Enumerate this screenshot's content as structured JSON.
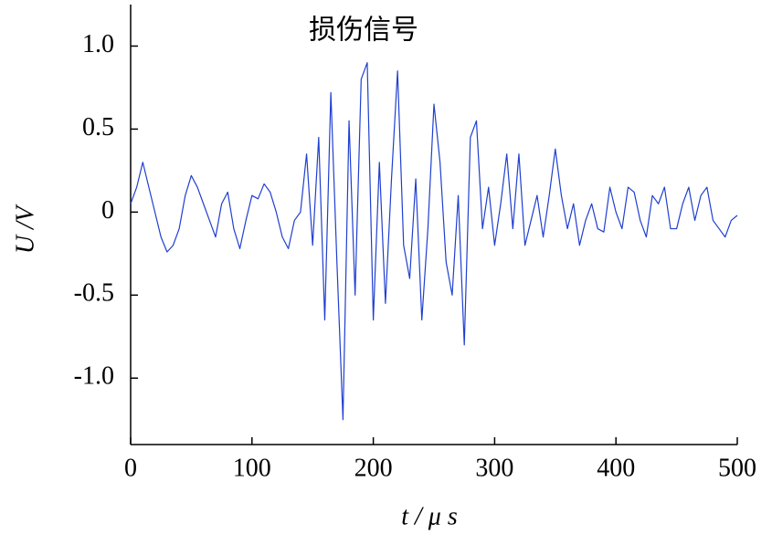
{
  "chart_data": {
    "type": "line",
    "title": "损伤信号",
    "x_label": "t / μ s",
    "y_label": "U /V",
    "xlim": [
      0,
      500
    ],
    "xticks": [
      0,
      100,
      200,
      300,
      400,
      500
    ],
    "ylim": [
      -1.4,
      1.25
    ],
    "yticks": [
      {
        "value": 1.0,
        "label": "1.0"
      },
      0.5,
      0,
      -0.5,
      {
        "value": -1.0,
        "label": "-1.0"
      }
    ],
    "grid": false,
    "x": [
      0,
      5,
      10,
      15,
      20,
      25,
      30,
      35,
      40,
      45,
      50,
      55,
      60,
      65,
      70,
      75,
      80,
      85,
      90,
      95,
      100,
      105,
      110,
      115,
      120,
      125,
      130,
      135,
      140,
      145,
      150,
      155,
      160,
      165,
      170,
      175,
      180,
      185,
      190,
      195,
      200,
      205,
      210,
      215,
      220,
      225,
      230,
      235,
      240,
      245,
      250,
      255,
      260,
      265,
      270,
      275,
      280,
      285,
      290,
      295,
      300,
      305,
      310,
      315,
      320,
      325,
      330,
      335,
      340,
      345,
      350,
      355,
      360,
      365,
      370,
      375,
      380,
      385,
      390,
      395,
      400,
      405,
      410,
      415,
      420,
      425,
      430,
      435,
      440,
      445,
      450,
      455,
      460,
      465,
      470,
      475,
      480,
      485,
      490,
      495,
      500
    ],
    "series": [
      {
        "name": "损伤信号",
        "color": "#1f3fcf",
        "values": [
          0.05,
          0.15,
          0.3,
          0.15,
          0.0,
          -0.15,
          -0.24,
          -0.2,
          -0.1,
          0.1,
          0.22,
          0.15,
          0.05,
          -0.05,
          -0.15,
          0.05,
          0.12,
          -0.1,
          -0.22,
          -0.05,
          0.1,
          0.08,
          0.17,
          0.12,
          0.0,
          -0.15,
          -0.22,
          -0.05,
          0.0,
          0.35,
          -0.2,
          0.45,
          -0.65,
          0.72,
          -0.3,
          -1.25,
          0.55,
          -0.5,
          0.8,
          0.9,
          -0.65,
          0.3,
          -0.55,
          0.2,
          0.85,
          -0.2,
          -0.4,
          0.2,
          -0.65,
          -0.1,
          0.65,
          0.3,
          -0.3,
          -0.5,
          0.1,
          -0.8,
          0.45,
          0.55,
          -0.1,
          0.15,
          -0.2,
          0.05,
          0.35,
          -0.1,
          0.35,
          -0.2,
          -0.05,
          0.1,
          -0.15,
          0.1,
          0.38,
          0.1,
          -0.1,
          0.05,
          -0.2,
          -0.05,
          0.05,
          -0.1,
          -0.12,
          0.15,
          0.0,
          -0.1,
          0.15,
          0.12,
          -0.05,
          -0.15,
          0.1,
          0.05,
          0.15,
          -0.1,
          -0.1,
          0.05,
          0.15,
          -0.05,
          0.1,
          0.15,
          -0.05,
          -0.1,
          -0.15,
          -0.05,
          -0.02
        ]
      }
    ]
  }
}
